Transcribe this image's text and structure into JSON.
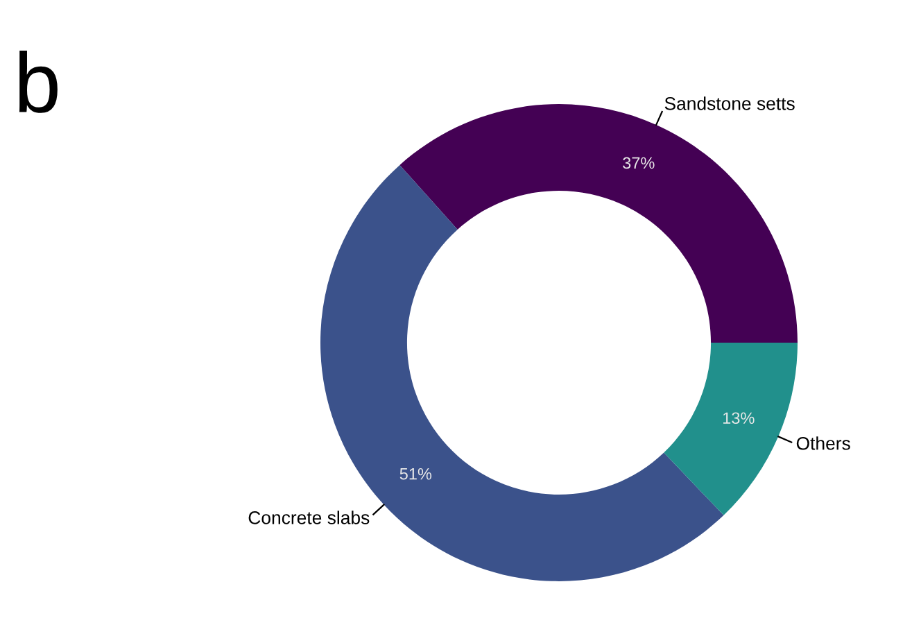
{
  "chart_data": {
    "type": "donut",
    "categories": [
      "Sandstone setts",
      "Concrete slabs",
      "Others"
    ],
    "values": [
      37,
      51,
      13
    ],
    "colors": [
      "#440154",
      "#3b528b",
      "#21908c"
    ],
    "value_labels": [
      "37%",
      "51%",
      "13%"
    ],
    "legend": false,
    "annotations": [
      "b"
    ]
  }
}
